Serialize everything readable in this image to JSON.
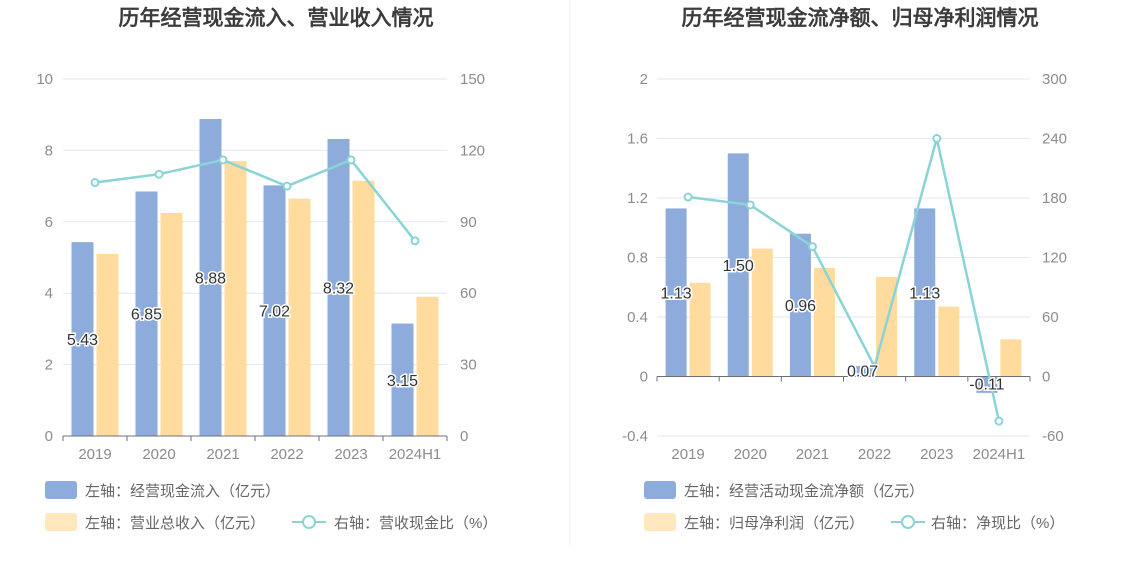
{
  "colors": {
    "bar1": "#8eacdb",
    "bar2": "#ffdb9e",
    "line": "#8ad4d6",
    "grid": "#e3e7f0",
    "axis_text": "#8c8c8c",
    "title": "#3c3c3c",
    "legend_text": "#666666"
  },
  "chart_data": [
    {
      "type": "bar",
      "title": "历年经营现金流入、营业收入情况",
      "categories": [
        "2019",
        "2020",
        "2021",
        "2022",
        "2023",
        "2024H1"
      ],
      "left_axis": {
        "ylim": [
          0,
          10
        ],
        "ticks": [
          "0",
          "2",
          "4",
          "6",
          "8",
          "10"
        ]
      },
      "right_axis": {
        "ylim": [
          0,
          150
        ],
        "ticks": [
          "0",
          "30",
          "60",
          "90",
          "120",
          "150"
        ]
      },
      "series": [
        {
          "name": "左轴：经营现金流入（亿元）",
          "type": "bar",
          "axis": "left",
          "values": [
            5.43,
            6.85,
            8.88,
            7.02,
            8.32,
            3.15
          ],
          "labels": [
            "5.43",
            "6.85",
            "8.88",
            "7.02",
            "8.32",
            "3.15"
          ]
        },
        {
          "name": "左轴：营业总收入（亿元）",
          "type": "bar",
          "axis": "left",
          "values": [
            5.1,
            6.25,
            7.7,
            6.65,
            7.15,
            3.9
          ]
        },
        {
          "name": "右轴：营收现金比（%）",
          "type": "line",
          "axis": "right",
          "values": [
            106.5,
            110,
            116,
            105,
            116,
            82
          ]
        }
      ]
    },
    {
      "type": "bar",
      "title": "历年经营现金流净额、归母净利润情况",
      "categories": [
        "2019",
        "2020",
        "2021",
        "2022",
        "2023",
        "2024H1"
      ],
      "left_axis": {
        "ylim": [
          -0.4,
          2
        ],
        "ticks": [
          "-0.4",
          "0",
          "0.4",
          "0.8",
          "1.2",
          "1.6",
          "2"
        ]
      },
      "right_axis": {
        "ylim": [
          -60,
          300
        ],
        "ticks": [
          "-60",
          "0",
          "60",
          "120",
          "180",
          "240",
          "300"
        ]
      },
      "series": [
        {
          "name": "左轴：经营活动现金流净额（亿元）",
          "type": "bar",
          "axis": "left",
          "values": [
            1.13,
            1.5,
            0.96,
            0.07,
            1.13,
            -0.11
          ],
          "labels": [
            "1.13",
            "1.50",
            "0.96",
            "0.07",
            "1.13",
            "-0.11"
          ]
        },
        {
          "name": "左轴：归母净利润（亿元）",
          "type": "bar",
          "axis": "left",
          "values": [
            0.63,
            0.86,
            0.73,
            0.67,
            0.47,
            0.25
          ]
        },
        {
          "name": "右轴：净现比（%）",
          "type": "line",
          "axis": "right",
          "values": [
            181,
            173,
            131,
            10,
            240,
            -45
          ]
        }
      ]
    }
  ]
}
